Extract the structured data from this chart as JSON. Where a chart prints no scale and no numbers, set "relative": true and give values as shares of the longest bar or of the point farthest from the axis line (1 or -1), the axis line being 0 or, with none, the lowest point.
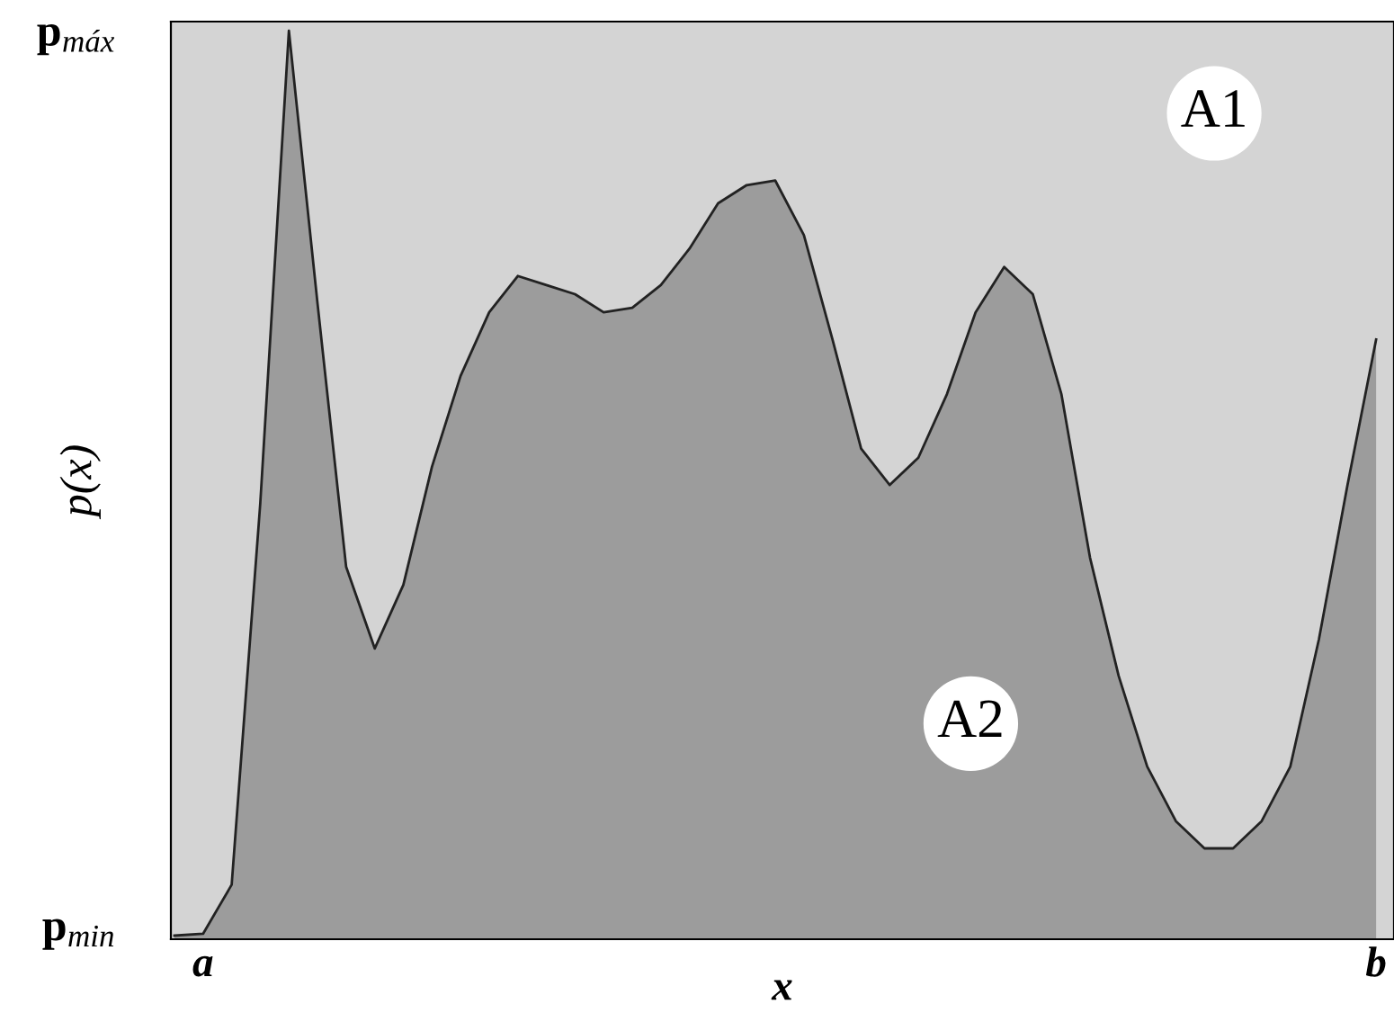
{
  "chart_data": {
    "type": "area",
    "relative": true,
    "xlabel": "x",
    "ylabel": "p(x)",
    "categories": [
      null,
      "a",
      null,
      null,
      null,
      null,
      null,
      null,
      null,
      null,
      null,
      null,
      null,
      null,
      null,
      null,
      null,
      null,
      null,
      null,
      null,
      null,
      null,
      null,
      null,
      null,
      null,
      null,
      null,
      null,
      null,
      null,
      null,
      null,
      null,
      null,
      null,
      null,
      null,
      null,
      null,
      null,
      "b"
    ],
    "series": [
      {
        "color": "#9c9c9c",
        "values": [
          0.004,
          0.006,
          0.06,
          0.48,
          1.0,
          0.7,
          0.41,
          0.32,
          0.39,
          0.52,
          0.62,
          0.69,
          0.73,
          0.72,
          0.71,
          0.69,
          0.695,
          0.72,
          0.76,
          0.81,
          0.83,
          0.835,
          0.775,
          0.66,
          0.54,
          0.5,
          0.53,
          0.6,
          0.69,
          0.74,
          0.71,
          0.6,
          0.42,
          0.29,
          0.19,
          0.13,
          0.1,
          0.1,
          0.13,
          0.19,
          0.33,
          0.5,
          0.66
        ]
      }
    ],
    "annotations": [
      "A1",
      "A2",
      "p$_{máx}$",
      "p$_{min}$"
    ],
    "grid": false,
    "legend": false
  }
}
